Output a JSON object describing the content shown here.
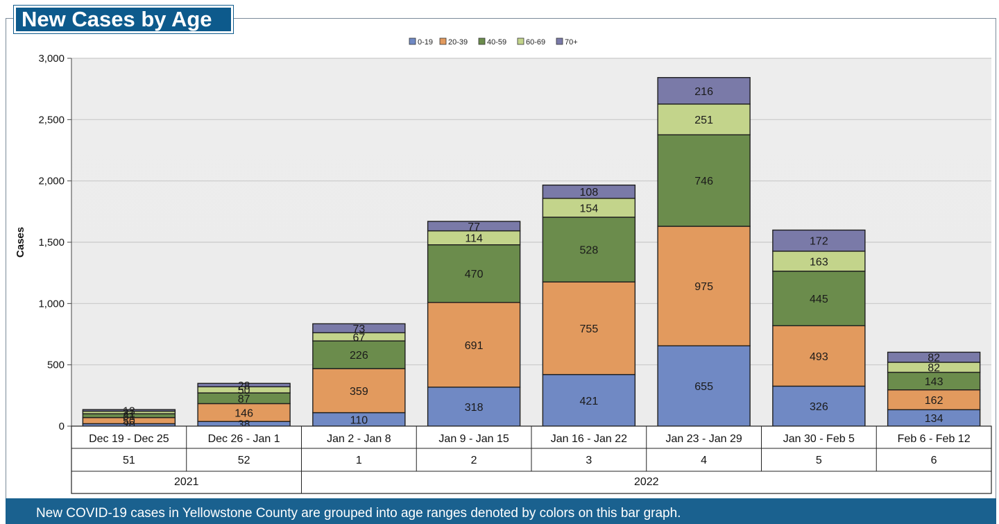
{
  "footer": {
    "text": "New COVID-19 cases in Yellowstone County are grouped into age ranges denoted by colors on this bar graph."
  },
  "chart_data": {
    "type": "bar",
    "stacked": true,
    "title": "New Cases by Age",
    "ylabel": "Cases",
    "ylim": [
      0,
      3000
    ],
    "yticks": [
      0,
      500,
      1000,
      1500,
      2000,
      2500,
      3000
    ],
    "ytick_labels": [
      "0",
      "500",
      "1,000",
      "1,500",
      "2,000",
      "2,500",
      "3,000"
    ],
    "categories": [
      "Dec 19 - Dec 25",
      "Dec 26 - Jan 1",
      "Jan 2 - Jan 8",
      "Jan 9 - Jan 15",
      "Jan 16 - Jan 22",
      "Jan 23 - Jan 29",
      "Jan 30 - Feb 5",
      "Feb 6 - Feb 12"
    ],
    "weeks": [
      "51",
      "52",
      "1",
      "2",
      "3",
      "4",
      "5",
      "6"
    ],
    "years": [
      {
        "label": "2021",
        "span": 2
      },
      {
        "label": "2022",
        "span": 6
      }
    ],
    "legend_position": "top-center",
    "grid": true,
    "series": [
      {
        "name": "0-19",
        "color": "#7089c4",
        "values": [
          20,
          38,
          110,
          318,
          421,
          655,
          326,
          134
        ]
      },
      {
        "name": "20-39",
        "color": "#e29a5e",
        "values": [
          50,
          146,
          359,
          691,
          755,
          975,
          493,
          162
        ]
      },
      {
        "name": "40-59",
        "color": "#6b8c4c",
        "values": [
          31,
          87,
          226,
          470,
          528,
          746,
          445,
          143
        ]
      },
      {
        "name": "60-69",
        "color": "#c3d48b",
        "values": [
          21,
          50,
          67,
          114,
          154,
          251,
          163,
          82
        ]
      },
      {
        "name": "70+",
        "color": "#7a7aa8",
        "values": [
          13,
          28,
          73,
          77,
          108,
          216,
          172,
          82
        ]
      }
    ]
  }
}
